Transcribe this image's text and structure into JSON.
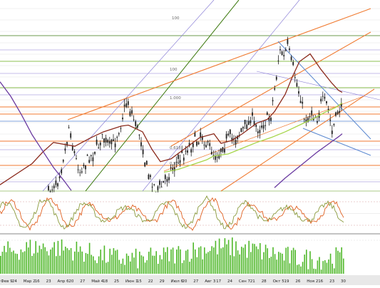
{
  "chart_data": [
    {
      "panel": "price",
      "type": "candlestick",
      "fib_labels": [
        "100",
        "1.000",
        "0.618",
        "0.500"
      ],
      "series": [
        {
          "name": "",
          "color": "#8b2a1c",
          "kind": "moving-average",
          "x": [
            0,
            45,
            60,
            75,
            105,
            125,
            145,
            170,
            180,
            200,
            213,
            225,
            240,
            260,
            280,
            300,
            310,
            325,
            340,
            360,
            375,
            385,
            400,
            410,
            420,
            435,
            450,
            465,
            475,
            480
          ],
          "y": [
            0.8,
            3.0,
            4.2,
            5.2,
            4.8,
            5.6,
            6.3,
            6.9,
            7.0,
            6.3,
            4.5,
            3.2,
            3.5,
            4.6,
            5.7,
            6.1,
            5.1,
            5.4,
            6.1,
            7.2,
            7.6,
            8.4,
            10.2,
            12.0,
            13.6,
            14.4,
            12.8,
            11.4,
            10.6,
            10.4
          ]
        },
        {
          "name": "",
          "color": "#a6d64a",
          "kind": "moving-average",
          "x": [
            230,
            250,
            270,
            290,
            300,
            320,
            340,
            360,
            380,
            400,
            420,
            440,
            455,
            470,
            480
          ],
          "y": [
            2.1,
            2.4,
            2.9,
            3.4,
            3.8,
            4.0,
            4.6,
            5.2,
            5.7,
            6.3,
            7.0,
            7.7,
            8.3,
            8.8,
            9.3
          ]
        },
        {
          "name": "",
          "color": "#6a3aa0",
          "kind": "moving-average",
          "x": [
            0,
            15,
            30,
            45,
            60,
            75,
            90,
            100
          ],
          "y": [
            11.5,
            10.0,
            8.1,
            6.0,
            4.3,
            2.6,
            1.2,
            0.2
          ]
        },
        {
          "name": "",
          "color": "#6a3aa0",
          "kind": "moving-average",
          "x": [
            385,
            400,
            415,
            430,
            445,
            460,
            475,
            480
          ],
          "y": [
            0.5,
            1.5,
            2.4,
            3.3,
            4.2,
            5.0,
            5.8,
            6.1
          ]
        }
      ],
      "ylim": [
        0,
        20
      ],
      "xlim": [
        0,
        533
      ]
    },
    {
      "panel": "oscillator",
      "type": "line",
      "series": [
        {
          "name": "",
          "color": "#e06020"
        },
        {
          "name": "",
          "color": "#8a9a3c"
        }
      ],
      "levels": [
        20,
        80
      ],
      "ylim": [
        0,
        100
      ]
    },
    {
      "panel": "volume",
      "type": "bar",
      "color": "#4fb82a",
      "ylim": [
        0,
        100
      ]
    }
  ],
  "x_axis": {
    "tick_labels": [
      "Фев 9",
      "24",
      "Мар 2",
      "16",
      "23",
      "Апр 6",
      "20",
      "27",
      "Май 4",
      "18",
      "25",
      "Июн 1",
      "15",
      "22",
      "29",
      "Июл 6",
      "20",
      "27",
      "Авг 3",
      "17",
      "24",
      "Сен 7",
      "21",
      "28",
      "Окт 5",
      "19",
      "26",
      "Ноя 2",
      "16",
      "23",
      "30"
    ]
  },
  "colors": {
    "background": "#ffffff",
    "grid": "#dcdcdc",
    "candle": "#222222",
    "orange_line": "#f07a30",
    "green_level": "#8cc050",
    "blue_line": "#5a88d0",
    "lavender_line": "#8a7fd6",
    "dark_green_line": "#3e7a10",
    "axis_bar": "#e8e8e8"
  }
}
